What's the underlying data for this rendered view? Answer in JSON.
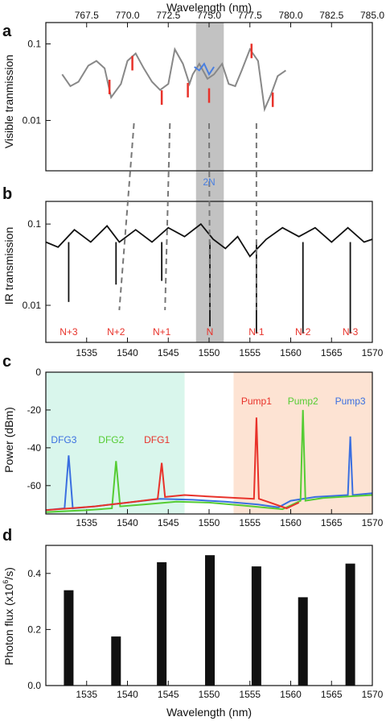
{
  "chart_data": [
    {
      "panel": "a",
      "type": "line",
      "xlabel": "Wavelength (nm)",
      "ylabel": "Visible tranmission",
      "xlim": [
        765.0,
        785.0
      ],
      "xticks": [
        "767.5",
        "770.0",
        "772.5",
        "775.0",
        "777.5",
        "780.0",
        "782.5",
        "785.0"
      ],
      "ylim": [
        0.0022,
        0.19
      ],
      "yscale": "log",
      "yticks": [
        "0.1",
        "0.01"
      ],
      "annotation": "2N",
      "colors": {
        "trace": "#888888",
        "highlight": "#4a7fe0",
        "dips": "#e8322a"
      },
      "trace": {
        "x": [
          766.0,
          766.5,
          767.0,
          767.6,
          768.1,
          768.6,
          769.0,
          769.6,
          770.0,
          770.5,
          771.0,
          771.5,
          772.0,
          772.5,
          772.9,
          773.4,
          773.8,
          774.0,
          774.4,
          774.9,
          775.3,
          775.8,
          776.2,
          776.6,
          777.0,
          777.5,
          778.0,
          778.4,
          778.8,
          779.2,
          779.7
        ],
        "y": [
          0.04,
          0.028,
          0.032,
          0.052,
          0.06,
          0.048,
          0.02,
          0.03,
          0.06,
          0.075,
          0.048,
          0.032,
          0.025,
          0.03,
          0.085,
          0.055,
          0.03,
          0.04,
          0.055,
          0.035,
          0.04,
          0.055,
          0.03,
          0.028,
          0.045,
          0.085,
          0.06,
          0.014,
          0.022,
          0.038,
          0.045
        ]
      },
      "highlight": {
        "x": [
          774.1,
          774.4,
          774.7,
          775.0,
          775.3
        ],
        "y": [
          0.05,
          0.045,
          0.055,
          0.04,
          0.05
        ]
      },
      "red_dips": [
        {
          "x": 768.9,
          "y": 0.022
        },
        {
          "x": 770.3,
          "y": 0.045
        },
        {
          "x": 772.1,
          "y": 0.016
        },
        {
          "x": 773.7,
          "y": 0.02
        },
        {
          "x": 775.0,
          "y": 0.017
        },
        {
          "x": 777.6,
          "y": 0.065
        },
        {
          "x": 778.9,
          "y": 0.015
        }
      ]
    },
    {
      "panel": "b",
      "type": "line",
      "xlabel": "",
      "ylabel": "IR transmission",
      "xlim": [
        1530.0,
        1570.0
      ],
      "ylim": [
        0.0035,
        0.19
      ],
      "yscale": "log",
      "yticks": [
        "0.1",
        "0.01"
      ],
      "colors": {
        "trace": "#111111",
        "labels": "#e8322a"
      },
      "trace": {
        "x": [
          1530.0,
          1531.5,
          1533.5,
          1535.5,
          1537.5,
          1539.0,
          1541.0,
          1543.0,
          1545.0,
          1547.0,
          1549.0,
          1550.5,
          1552.0,
          1553.5,
          1555.0,
          1557.0,
          1559.0,
          1561.0,
          1563.0,
          1565.0,
          1567.0,
          1569.0,
          1570.0
        ],
        "y": [
          0.06,
          0.052,
          0.085,
          0.06,
          0.095,
          0.06,
          0.085,
          0.06,
          0.09,
          0.07,
          0.1,
          0.065,
          0.05,
          0.07,
          0.04,
          0.065,
          0.09,
          0.07,
          0.09,
          0.06,
          0.09,
          0.06,
          0.065
        ]
      },
      "dips": [
        {
          "x": 1532.8,
          "y": 0.011
        },
        {
          "x": 1538.6,
          "y": 0.018
        },
        {
          "x": 1544.2,
          "y": 0.02
        },
        {
          "x": 1550.1,
          "y": 0.0055
        },
        {
          "x": 1555.8,
          "y": 0.0045
        },
        {
          "x": 1561.5,
          "y": 0.0045
        },
        {
          "x": 1567.3,
          "y": 0.0045
        }
      ],
      "mode_labels": [
        {
          "text": "N+3",
          "x": 1532.8
        },
        {
          "text": "N+2",
          "x": 1538.6
        },
        {
          "text": "N+1",
          "x": 1544.2
        },
        {
          "text": "N",
          "x": 1550.1
        },
        {
          "text": "N-1",
          "x": 1555.8
        },
        {
          "text": "N-2",
          "x": 1561.5
        },
        {
          "text": "N-3",
          "x": 1567.3
        }
      ],
      "band": [
        1548.4,
        1551.8
      ],
      "dashed_links": [
        {
          "top_nm": 770.4,
          "bottom_nm": 1539.0
        },
        {
          "top_nm": 772.6,
          "bottom_nm": 1544.6
        },
        {
          "top_nm": 775.0,
          "bottom_nm": 1550.1
        },
        {
          "top_nm": 777.9,
          "bottom_nm": 1555.8
        }
      ]
    },
    {
      "panel": "c",
      "type": "line",
      "xlabel": "",
      "ylabel": "Power (dBm)",
      "xlim": [
        1530.0,
        1570.0
      ],
      "xticks": [
        "1535",
        "1540",
        "1545",
        "1550",
        "1555",
        "1560",
        "1565",
        "1570"
      ],
      "ylim": [
        -75,
        0
      ],
      "yticks": [
        "0",
        "-20",
        "-40",
        "-60"
      ],
      "shaded_regions": [
        {
          "from": 1530.0,
          "to": 1547.0,
          "color": "#d9f6ec"
        },
        {
          "from": 1553.0,
          "to": 1570.0,
          "color": "#fde3d3"
        }
      ],
      "series": [
        {
          "name": "DFG3 / Pump3",
          "color": "#3a6fe0",
          "x": [
            1530.0,
            1532.3,
            1532.8,
            1533.3,
            1536.0,
            1540.0,
            1544.0,
            1548.0,
            1552.0,
            1556.0,
            1558.5,
            1560.0,
            1563.0,
            1567.0,
            1567.3,
            1567.6,
            1570.0
          ],
          "y": [
            -73.0,
            -72.0,
            -44.0,
            -72.0,
            -71.0,
            -69.0,
            -67.0,
            -67.5,
            -68.5,
            -70.0,
            -71.5,
            -68.0,
            -66.0,
            -65.0,
            -34.0,
            -65.0,
            -64.0
          ]
        },
        {
          "name": "DFG2 / Pump2",
          "color": "#55cc33",
          "x": [
            1530.0,
            1535.0,
            1538.1,
            1538.6,
            1539.1,
            1542.0,
            1546.0,
            1550.0,
            1554.0,
            1559.0,
            1561.2,
            1561.5,
            1561.8,
            1564.0,
            1570.0
          ],
          "y": [
            -74.0,
            -73.0,
            -72.0,
            -47.0,
            -71.0,
            -70.0,
            -68.5,
            -69.0,
            -70.5,
            -72.5,
            -68.0,
            -20.0,
            -68.0,
            -66.5,
            -65.0
          ]
        },
        {
          "name": "DFG1 / Pump1",
          "color": "#e8322a",
          "x": [
            1530.0,
            1536.0,
            1540.0,
            1543.7,
            1544.2,
            1544.6,
            1547.0,
            1551.0,
            1555.5,
            1555.8,
            1556.1,
            1557.5,
            1559.5,
            1561.0
          ],
          "y": [
            -73.0,
            -71.0,
            -69.0,
            -67.0,
            -48.0,
            -66.0,
            -65.0,
            -66.0,
            -67.0,
            -24.0,
            -67.0,
            -69.0,
            -72.0,
            -69.0
          ]
        }
      ],
      "peak_labels": [
        {
          "text": "DFG3",
          "x": 1532.8,
          "color": "#3a6fe0"
        },
        {
          "text": "DFG2",
          "x": 1538.6,
          "color": "#55cc33"
        },
        {
          "text": "DFG1",
          "x": 1544.2,
          "color": "#e8322a"
        },
        {
          "text": "Pump1",
          "x": 1555.8,
          "color": "#e8322a"
        },
        {
          "text": "Pump2",
          "x": 1561.5,
          "color": "#55cc33"
        },
        {
          "text": "Pump3",
          "x": 1567.3,
          "color": "#3a6fe0"
        }
      ]
    },
    {
      "panel": "d",
      "type": "bar",
      "xlabel": "Wavelength (nm)",
      "ylabel_parts": [
        "Photon flux (x10",
        "6",
        "/s)"
      ],
      "xlim": [
        1530.0,
        1570.0
      ],
      "xticks": [
        "1535",
        "1540",
        "1545",
        "1550",
        "1555",
        "1560",
        "1565",
        "1570"
      ],
      "ylim": [
        0.0,
        0.5
      ],
      "yticks": [
        "0.0",
        "0.2",
        "0.4"
      ],
      "color": "#111111",
      "x": [
        1532.8,
        1538.6,
        1544.2,
        1550.1,
        1555.8,
        1561.5,
        1567.3
      ],
      "values": [
        0.34,
        0.175,
        0.44,
        0.465,
        0.425,
        0.315,
        0.435
      ]
    }
  ]
}
